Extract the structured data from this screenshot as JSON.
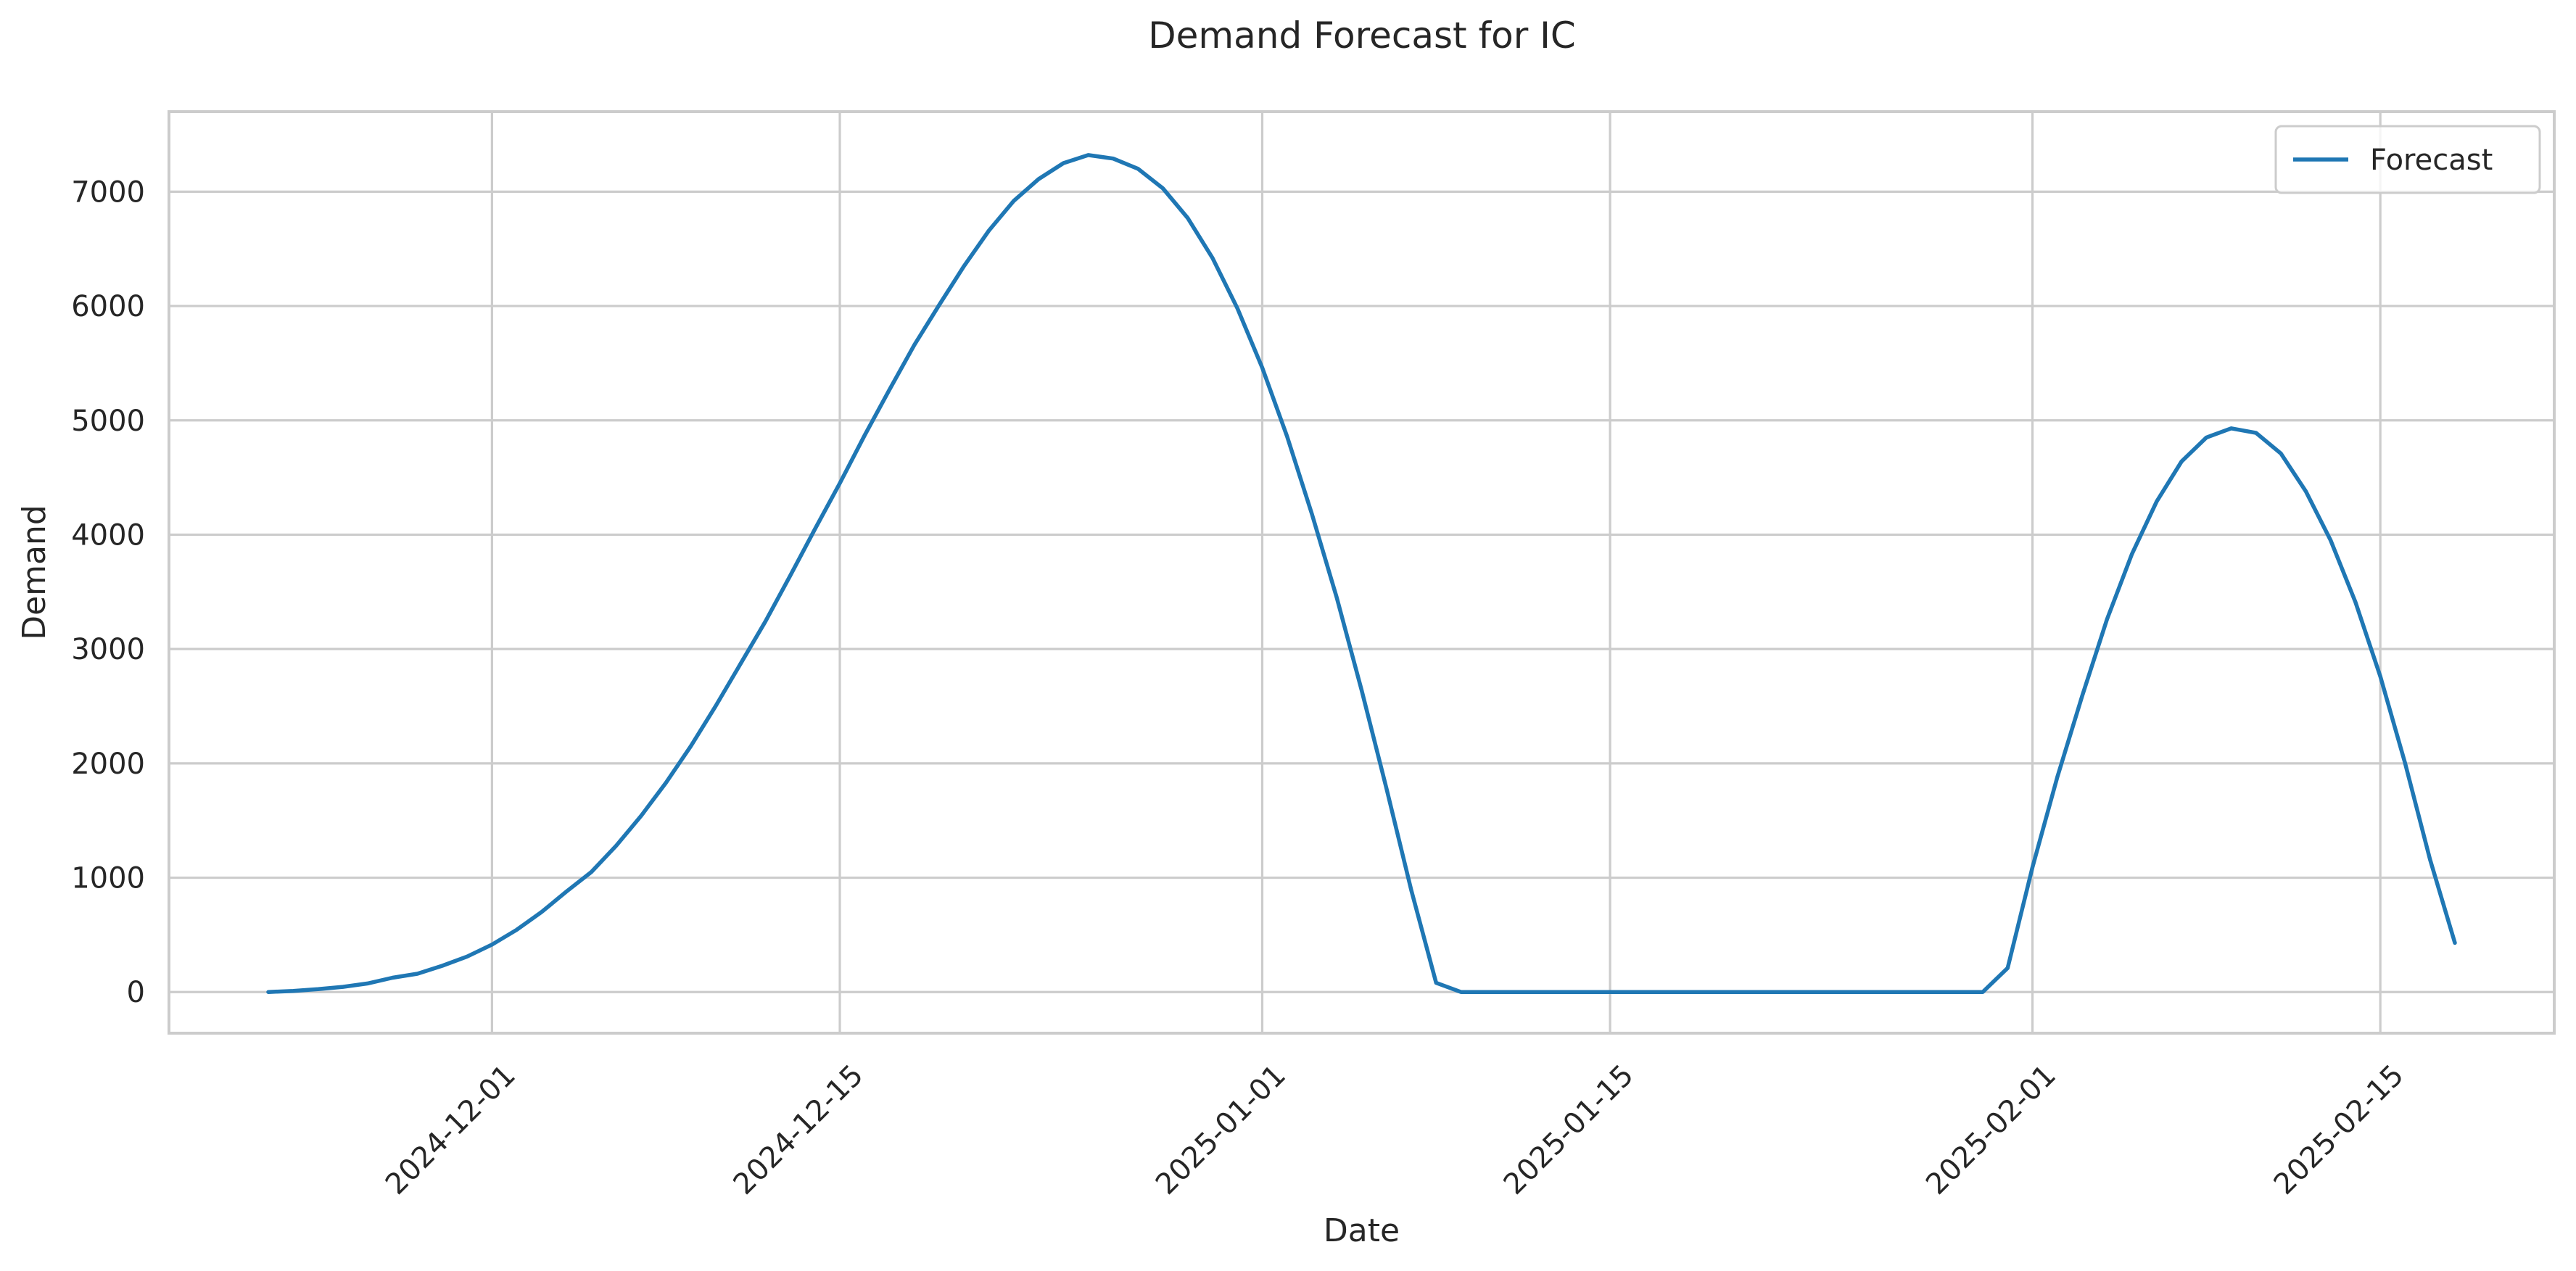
{
  "chart_data": {
    "type": "line",
    "title": "Demand Forecast for IC",
    "xlabel": "Date",
    "ylabel": "Demand",
    "xlim": [
      "2024-11-18",
      "2025-02-22"
    ],
    "ylim": [
      -360,
      7700
    ],
    "x_ticks": [
      "2024-12-01",
      "2024-12-15",
      "2025-01-01",
      "2025-01-15",
      "2025-02-01",
      "2025-02-15"
    ],
    "y_ticks": [
      0,
      1000,
      2000,
      3000,
      4000,
      5000,
      6000,
      7000
    ],
    "grid": true,
    "legend_position": "top-right",
    "series": [
      {
        "name": "Forecast",
        "color": "#1f77b4",
        "points": [
          [
            "2024-11-22",
            0
          ],
          [
            "2024-11-23",
            10
          ],
          [
            "2024-11-24",
            25
          ],
          [
            "2024-11-25",
            45
          ],
          [
            "2024-11-26",
            75
          ],
          [
            "2024-11-27",
            125
          ],
          [
            "2024-11-28",
            160
          ],
          [
            "2024-11-29",
            230
          ],
          [
            "2024-11-30",
            310
          ],
          [
            "2024-12-01",
            415
          ],
          [
            "2024-12-02",
            545
          ],
          [
            "2024-12-03",
            700
          ],
          [
            "2024-12-04",
            880
          ],
          [
            "2024-12-05",
            1050
          ],
          [
            "2024-12-06",
            1280
          ],
          [
            "2024-12-07",
            1540
          ],
          [
            "2024-12-08",
            1830
          ],
          [
            "2024-12-09",
            2150
          ],
          [
            "2024-12-10",
            2500
          ],
          [
            "2024-12-11",
            2870
          ],
          [
            "2024-12-12",
            3240
          ],
          [
            "2024-12-13",
            3640
          ],
          [
            "2024-12-14",
            4050
          ],
          [
            "2024-12-15",
            4450
          ],
          [
            "2024-12-16",
            4870
          ],
          [
            "2024-12-17",
            5270
          ],
          [
            "2024-12-18",
            5660
          ],
          [
            "2024-12-19",
            6010
          ],
          [
            "2024-12-20",
            6350
          ],
          [
            "2024-12-21",
            6660
          ],
          [
            "2024-12-22",
            6920
          ],
          [
            "2024-12-23",
            7110
          ],
          [
            "2024-12-24",
            7250
          ],
          [
            "2024-12-25",
            7320
          ],
          [
            "2024-12-26",
            7290
          ],
          [
            "2024-12-27",
            7200
          ],
          [
            "2024-12-28",
            7030
          ],
          [
            "2024-12-29",
            6770
          ],
          [
            "2024-12-30",
            6420
          ],
          [
            "2024-12-31",
            5980
          ],
          [
            "2025-01-01",
            5460
          ],
          [
            "2025-01-02",
            4860
          ],
          [
            "2025-01-03",
            4180
          ],
          [
            "2025-01-04",
            3450
          ],
          [
            "2025-01-05",
            2640
          ],
          [
            "2025-01-06",
            1780
          ],
          [
            "2025-01-07",
            890
          ],
          [
            "2025-01-08",
            80
          ],
          [
            "2025-01-09",
            0
          ],
          [
            "2025-01-10",
            0
          ],
          [
            "2025-01-11",
            0
          ],
          [
            "2025-01-12",
            0
          ],
          [
            "2025-01-13",
            0
          ],
          [
            "2025-01-14",
            0
          ],
          [
            "2025-01-15",
            0
          ],
          [
            "2025-01-16",
            0
          ],
          [
            "2025-01-17",
            0
          ],
          [
            "2025-01-18",
            0
          ],
          [
            "2025-01-19",
            0
          ],
          [
            "2025-01-20",
            0
          ],
          [
            "2025-01-21",
            0
          ],
          [
            "2025-01-22",
            0
          ],
          [
            "2025-01-23",
            0
          ],
          [
            "2025-01-24",
            0
          ],
          [
            "2025-01-25",
            0
          ],
          [
            "2025-01-26",
            0
          ],
          [
            "2025-01-27",
            0
          ],
          [
            "2025-01-28",
            0
          ],
          [
            "2025-01-29",
            0
          ],
          [
            "2025-01-30",
            0
          ],
          [
            "2025-01-31",
            210
          ],
          [
            "2025-02-01",
            1090
          ],
          [
            "2025-02-02",
            1880
          ],
          [
            "2025-02-03",
            2590
          ],
          [
            "2025-02-04",
            3260
          ],
          [
            "2025-02-05",
            3830
          ],
          [
            "2025-02-06",
            4290
          ],
          [
            "2025-02-07",
            4640
          ],
          [
            "2025-02-08",
            4850
          ],
          [
            "2025-02-09",
            4930
          ],
          [
            "2025-02-10",
            4890
          ],
          [
            "2025-02-11",
            4710
          ],
          [
            "2025-02-12",
            4380
          ],
          [
            "2025-02-13",
            3950
          ],
          [
            "2025-02-14",
            3410
          ],
          [
            "2025-02-15",
            2760
          ],
          [
            "2025-02-16",
            2000
          ],
          [
            "2025-02-17",
            1160
          ],
          [
            "2025-02-18",
            430
          ]
        ]
      }
    ]
  }
}
